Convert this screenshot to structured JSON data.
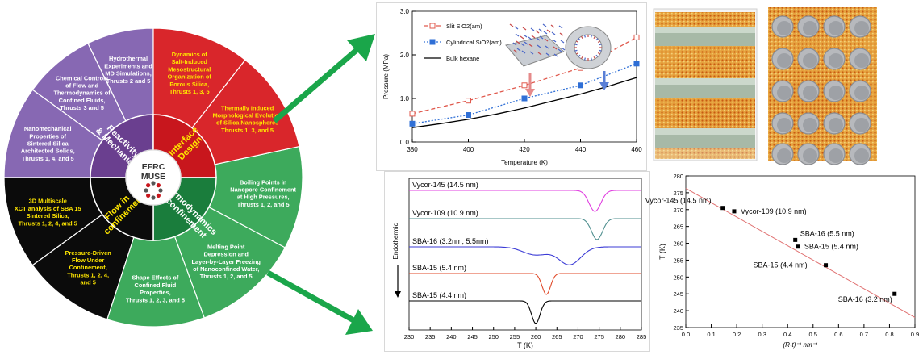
{
  "wheel": {
    "center": [
      "EFRC",
      "MUSE"
    ],
    "inner": [
      {
        "id": "reactivity",
        "lines": [
          "Reactivity",
          "& Mechanics"
        ],
        "color": "#6a3f8f",
        "text_color": "#ffffff"
      },
      {
        "id": "interface",
        "lines": [
          "Interface",
          "Design"
        ],
        "color": "#c8161d",
        "text_color": "#ffe600"
      },
      {
        "id": "thermo",
        "lines": [
          "Thermodynamics",
          "in confinement"
        ],
        "color": "#1a7d3c",
        "text_color": "#ffffff"
      },
      {
        "id": "flow",
        "lines": [
          "Flow in",
          "confinement"
        ],
        "color": "#0b0b0b",
        "text_color": "#ffe600"
      }
    ],
    "outer": [
      {
        "id": "hydrothermal",
        "lines": [
          "Hydrothermal",
          "Experiments and",
          "MD Simulations,",
          "Thrusts 2 and 5"
        ],
        "color": "#8768b3",
        "text_color": "#ffffff"
      },
      {
        "id": "chemical",
        "lines": [
          "Chemical Controls",
          "of Flow and",
          "Thermodynamics of",
          "Confined Fluids,",
          "Thrusts 3 and 5"
        ],
        "color": "#8768b3",
        "text_color": "#ffffff"
      },
      {
        "id": "nanomech",
        "lines": [
          "Nanomechanical",
          "Properties of",
          "Sintered Silica",
          "Architected Solids,",
          "Thrusts 1, 4, and 5"
        ],
        "color": "#8768b3",
        "text_color": "#ffffff"
      },
      {
        "id": "xct",
        "lines": [
          "3D Multiscale",
          "XCT analysis of SBA 15",
          "Sintered Silica,",
          "Thrusts 1, 2, 4, and 5"
        ],
        "color": "#0b0b0b",
        "text_color": "#ffe600"
      },
      {
        "id": "pressure",
        "lines": [
          "Pressure-Driven",
          "Flow Under",
          "Confinement,",
          "Thrusts 1, 2, 4,",
          "and 5"
        ],
        "color": "#0b0b0b",
        "text_color": "#ffe600"
      },
      {
        "id": "shape",
        "lines": [
          "Shape Effects of",
          "Confined Fluid",
          "Properties,",
          "Thrusts 1, 2, 3, and 5"
        ],
        "color": "#3daa5c",
        "text_color": "#ffffff"
      },
      {
        "id": "melting",
        "lines": [
          "Melting Point",
          "Depression and",
          "Layer-by-Layer Freezing",
          "of Nanoconfined Water,",
          "Thrusts 1, 2, and 5"
        ],
        "color": "#3daa5c",
        "text_color": "#ffffff"
      },
      {
        "id": "boiling",
        "lines": [
          "Boiling Points in",
          "Nanopore Confinement",
          "at High Pressures,",
          "Thrusts 1, 2, and 5"
        ],
        "color": "#3daa5c",
        "text_color": "#ffffff"
      },
      {
        "id": "thermal",
        "lines": [
          "Thermally Induced",
          "Morphological Evolution",
          "of Silica Nanospheres",
          "Thrusts 1, 3, and 5"
        ],
        "color": "#d9262b",
        "text_color": "#ffe600"
      },
      {
        "id": "dynamics",
        "lines": [
          "Dynamics of",
          "Salt-Induced",
          "Mesostructural",
          "Organization of",
          "Porous Silica,",
          "Thrusts 1, 3, 5"
        ],
        "color": "#d9262b",
        "text_color": "#ffe600"
      }
    ]
  },
  "chart_data": [
    {
      "type": "line",
      "xlabel": "Temperature (K)",
      "ylabel": "Pressure (MPa)",
      "xlim": [
        380,
        460
      ],
      "ylim": [
        0.0,
        3.0
      ],
      "xticks": [
        "380",
        "400",
        "420",
        "440",
        "460"
      ],
      "yticks": [
        "0.0",
        "1.0",
        "2.0",
        "3.0"
      ],
      "legend_position": "top-left",
      "series": [
        {
          "name": "Slit SiO2(am)",
          "x": [
            380,
            400,
            420,
            440,
            460
          ],
          "y": [
            0.65,
            0.95,
            1.3,
            1.7,
            2.4
          ],
          "color": "#e05a4e",
          "style": "dashed",
          "marker": "open-square"
        },
        {
          "name": "Cylindrical SiO2(am)",
          "x": [
            380,
            400,
            420,
            440,
            460
          ],
          "y": [
            0.42,
            0.62,
            1.0,
            1.3,
            1.8
          ],
          "color": "#2f6fd6",
          "style": "dotted",
          "marker": "filled-square"
        },
        {
          "name": "Bulk hexane",
          "x": [
            380,
            390,
            400,
            410,
            420,
            430,
            440,
            450,
            460
          ],
          "y": [
            0.33,
            0.42,
            0.52,
            0.64,
            0.78,
            0.94,
            1.1,
            1.28,
            1.48
          ],
          "color": "#000000",
          "style": "solid",
          "marker": "none"
        }
      ]
    },
    {
      "type": "line",
      "xlabel": "T (K)",
      "ylabel": "Endothermic",
      "xlim": [
        230,
        285
      ],
      "xticks": [
        "230",
        "235",
        "240",
        "245",
        "250",
        "255",
        "260",
        "265",
        "270",
        "275",
        "280",
        "285"
      ],
      "series": [
        {
          "name": "Vycor-145 (14.5 nm)",
          "color": "#e040e0",
          "dip_center": 274,
          "dip_depth": 26,
          "dip_width": 1.4,
          "baseline": 235
        },
        {
          "name": "Vycor-109 (10.9 nm)",
          "color": "#4f8f8f",
          "dip_center": 274.5,
          "dip_depth": 26,
          "dip_width": 1.3,
          "baseline": 270
        },
        {
          "name": "SBA-16 (3.2nm, 5.5nm)",
          "color": "#3b3bd6",
          "dip_center": 268,
          "dip_depth": 22,
          "dip_width": 2.6,
          "baseline": 305
        },
        {
          "name": "SBA-15 (5.4 nm)",
          "color": "#e04a2a",
          "dip_center": 262.5,
          "dip_depth": 26,
          "dip_width": 1.0,
          "baseline": 338
        },
        {
          "name": "SBA-15 (4.4 nm)",
          "color": "#000000",
          "dip_center": 260,
          "dip_depth": 28,
          "dip_width": 1.0,
          "baseline": 372
        }
      ]
    },
    {
      "type": "scatter",
      "xlabel": "(R-t)⁻¹ nm⁻¹",
      "ylabel": "T (K)",
      "xlim": [
        0.0,
        0.9
      ],
      "ylim": [
        235,
        280
      ],
      "xticks": [
        "0.0",
        "0.1",
        "0.2",
        "0.3",
        "0.4",
        "0.5",
        "0.6",
        "0.7",
        "0.8",
        "0.9"
      ],
      "yticks": [
        "235",
        "240",
        "245",
        "250",
        "255",
        "260",
        "265",
        "270",
        "275",
        "280"
      ],
      "points": [
        {
          "label": "Vycor-145 (14.5 nm)",
          "x": 0.145,
          "y": 270.5
        },
        {
          "label": "Vycor-109 (10.9 nm)",
          "x": 0.19,
          "y": 269.5
        },
        {
          "label": "SBA-16 (5.5 nm)",
          "x": 0.43,
          "y": 261.0
        },
        {
          "label": "SBA-15 (5.4 nm)",
          "x": 0.44,
          "y": 259.0
        },
        {
          "label": "SBA-15 (4.4 nm)",
          "x": 0.55,
          "y": 253.5
        },
        {
          "label": "SBA-16 (3.2 nm)",
          "x": 0.82,
          "y": 245.0
        }
      ],
      "fit": {
        "x": [
          0.0,
          0.9
        ],
        "y": [
          276.3,
          238.0
        ],
        "color": "#e07070"
      }
    }
  ]
}
